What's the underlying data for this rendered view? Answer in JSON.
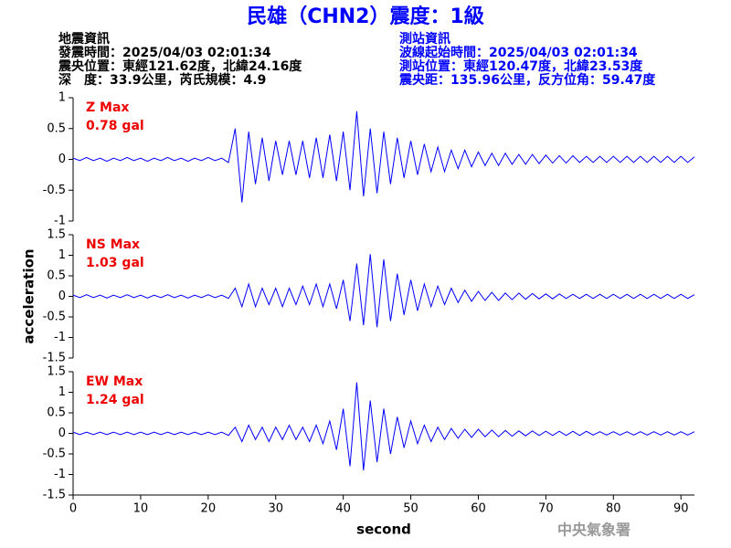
{
  "header": {
    "left": [
      "地震資訊",
      "發震時間：2025/04/03 02:01:34",
      "震央位置：東經121.62度，北緯24.16度",
      "深　度：33.9公里，芮氏規模：4.9"
    ],
    "right": [
      "測站資訊",
      "波線起始時間：2025/04/03 02:01:34",
      "測站位置：東經120.47度，北緯23.53度",
      "震央距：135.96公里，反方位角：59.47度"
    ],
    "watermark": "中央氣象署"
  },
  "chart_data": [
    {
      "type": "line",
      "title": "民雄（CHN2）震度：1級",
      "annotations": [
        "Z Max",
        "0.78 gal"
      ],
      "xlim": [
        0,
        92
      ],
      "ylim": [
        -1,
        1
      ],
      "yticks": [
        -1,
        -0.5,
        0,
        0.5,
        1
      ],
      "x": [
        0,
        1,
        2,
        3,
        4,
        5,
        6,
        7,
        8,
        9,
        10,
        11,
        12,
        13,
        14,
        15,
        16,
        17,
        18,
        19,
        20,
        21,
        22,
        23,
        24,
        25,
        26,
        27,
        28,
        29,
        30,
        31,
        32,
        33,
        34,
        35,
        36,
        37,
        38,
        39,
        40,
        41,
        42,
        43,
        44,
        45,
        46,
        47,
        48,
        49,
        50,
        51,
        52,
        53,
        54,
        55,
        56,
        57,
        58,
        59,
        60,
        61,
        62,
        63,
        64,
        65,
        66,
        67,
        68,
        69,
        70,
        71,
        72,
        73,
        74,
        75,
        76,
        77,
        78,
        79,
        80,
        81,
        82,
        83,
        84,
        85,
        86,
        87,
        88,
        89,
        90,
        91,
        92
      ],
      "series": [
        {
          "name": "Z",
          "color": "#0000ff",
          "values": [
            0.02,
            -0.02,
            0.03,
            -0.02,
            0.02,
            -0.03,
            0.02,
            -0.02,
            0.03,
            -0.02,
            0.02,
            -0.03,
            0.02,
            -0.02,
            0.03,
            -0.02,
            0.02,
            -0.03,
            0.02,
            -0.02,
            0.03,
            -0.02,
            0.02,
            -0.05,
            0.5,
            -0.7,
            0.45,
            -0.4,
            0.35,
            -0.35,
            0.3,
            -0.25,
            0.3,
            -0.25,
            0.3,
            -0.3,
            0.35,
            -0.3,
            0.4,
            -0.35,
            0.45,
            -0.5,
            0.78,
            -0.6,
            0.5,
            -0.55,
            0.45,
            -0.4,
            0.35,
            -0.3,
            0.3,
            -0.25,
            0.25,
            -0.2,
            0.2,
            -0.2,
            0.15,
            -0.15,
            0.15,
            -0.12,
            0.12,
            -0.1,
            0.1,
            -0.1,
            0.1,
            -0.08,
            0.08,
            -0.08,
            0.08,
            -0.07,
            0.07,
            -0.06,
            0.06,
            -0.06,
            0.06,
            -0.05,
            0.05,
            -0.05,
            0.05,
            -0.05,
            0.05,
            -0.05,
            0.05,
            -0.05,
            0.05,
            -0.05,
            0.05,
            -0.05,
            0.05,
            -0.05,
            0.05,
            -0.05,
            0.04
          ]
        }
      ]
    },
    {
      "type": "line",
      "ylabel": "acceleration",
      "annotations": [
        "NS Max",
        "1.03 gal"
      ],
      "xlim": [
        0,
        92
      ],
      "ylim": [
        -1.5,
        1.5
      ],
      "yticks": [
        -1.5,
        -1,
        -0.5,
        0,
        0.5,
        1,
        1.5
      ],
      "x": [
        0,
        1,
        2,
        3,
        4,
        5,
        6,
        7,
        8,
        9,
        10,
        11,
        12,
        13,
        14,
        15,
        16,
        17,
        18,
        19,
        20,
        21,
        22,
        23,
        24,
        25,
        26,
        27,
        28,
        29,
        30,
        31,
        32,
        33,
        34,
        35,
        36,
        37,
        38,
        39,
        40,
        41,
        42,
        43,
        44,
        45,
        46,
        47,
        48,
        49,
        50,
        51,
        52,
        53,
        54,
        55,
        56,
        57,
        58,
        59,
        60,
        61,
        62,
        63,
        64,
        65,
        66,
        67,
        68,
        69,
        70,
        71,
        72,
        73,
        74,
        75,
        76,
        77,
        78,
        79,
        80,
        81,
        82,
        83,
        84,
        85,
        86,
        87,
        88,
        89,
        90,
        91,
        92
      ],
      "series": [
        {
          "name": "NS",
          "color": "#0000ff",
          "values": [
            0.03,
            -0.03,
            0.04,
            -0.03,
            0.03,
            -0.04,
            0.03,
            -0.03,
            0.04,
            -0.03,
            0.03,
            -0.04,
            0.03,
            -0.03,
            0.04,
            -0.03,
            0.03,
            -0.04,
            0.03,
            -0.03,
            0.04,
            -0.03,
            0.03,
            -0.05,
            0.2,
            -0.25,
            0.3,
            -0.25,
            0.2,
            -0.2,
            0.2,
            -0.25,
            0.2,
            -0.2,
            0.25,
            -0.2,
            0.3,
            -0.25,
            0.3,
            -0.3,
            0.4,
            -0.6,
            0.8,
            -0.7,
            1.03,
            -0.75,
            0.9,
            -0.6,
            0.55,
            -0.45,
            0.4,
            -0.35,
            0.3,
            -0.25,
            0.25,
            -0.2,
            0.2,
            -0.15,
            0.15,
            -0.12,
            0.12,
            -0.1,
            0.1,
            -0.1,
            0.08,
            -0.08,
            0.08,
            -0.07,
            0.07,
            -0.06,
            0.06,
            -0.06,
            0.06,
            -0.05,
            0.05,
            -0.05,
            0.05,
            -0.05,
            0.05,
            -0.05,
            0.05,
            -0.05,
            0.05,
            -0.05,
            0.05,
            -0.05,
            0.05,
            -0.05,
            0.05,
            -0.05,
            0.05,
            -0.05,
            0.04
          ]
        }
      ]
    },
    {
      "type": "line",
      "xlabel": "second",
      "annotations": [
        "EW Max",
        "1.24 gal"
      ],
      "xlim": [
        0,
        92
      ],
      "ylim": [
        -1.5,
        1.5
      ],
      "yticks": [
        -1.5,
        -1,
        -0.5,
        0,
        0.5,
        1,
        1.5
      ],
      "xticks": [
        0,
        10,
        20,
        30,
        40,
        50,
        60,
        70,
        80,
        90
      ],
      "x": [
        0,
        1,
        2,
        3,
        4,
        5,
        6,
        7,
        8,
        9,
        10,
        11,
        12,
        13,
        14,
        15,
        16,
        17,
        18,
        19,
        20,
        21,
        22,
        23,
        24,
        25,
        26,
        27,
        28,
        29,
        30,
        31,
        32,
        33,
        34,
        35,
        36,
        37,
        38,
        39,
        40,
        41,
        42,
        43,
        44,
        45,
        46,
        47,
        48,
        49,
        50,
        51,
        52,
        53,
        54,
        55,
        56,
        57,
        58,
        59,
        60,
        61,
        62,
        63,
        64,
        65,
        66,
        67,
        68,
        69,
        70,
        71,
        72,
        73,
        74,
        75,
        76,
        77,
        78,
        79,
        80,
        81,
        82,
        83,
        84,
        85,
        86,
        87,
        88,
        89,
        90,
        91,
        92
      ],
      "series": [
        {
          "name": "EW",
          "color": "#0000ff",
          "values": [
            0.03,
            -0.03,
            0.03,
            -0.03,
            0.03,
            -0.03,
            0.03,
            -0.03,
            0.03,
            -0.03,
            0.03,
            -0.03,
            0.03,
            -0.03,
            0.03,
            -0.03,
            0.03,
            -0.03,
            0.03,
            -0.03,
            0.03,
            -0.03,
            0.03,
            -0.05,
            0.15,
            -0.2,
            0.2,
            -0.15,
            0.15,
            -0.2,
            0.15,
            -0.15,
            0.2,
            -0.15,
            0.15,
            -0.2,
            0.2,
            -0.25,
            0.3,
            -0.4,
            0.6,
            -0.8,
            1.24,
            -0.9,
            0.8,
            -0.7,
            0.6,
            -0.5,
            0.4,
            -0.35,
            0.3,
            -0.25,
            0.2,
            -0.2,
            0.15,
            -0.15,
            0.12,
            -0.12,
            0.1,
            -0.1,
            0.1,
            -0.08,
            0.08,
            -0.08,
            0.07,
            -0.07,
            0.06,
            -0.06,
            0.06,
            -0.05,
            0.05,
            -0.05,
            0.05,
            -0.05,
            0.05,
            -0.05,
            0.05,
            -0.04,
            0.04,
            -0.04,
            0.04,
            -0.04,
            0.04,
            -0.04,
            0.04,
            -0.04,
            0.04,
            -0.04,
            0.04,
            -0.04,
            0.04,
            -0.04,
            0.04
          ]
        }
      ]
    }
  ]
}
